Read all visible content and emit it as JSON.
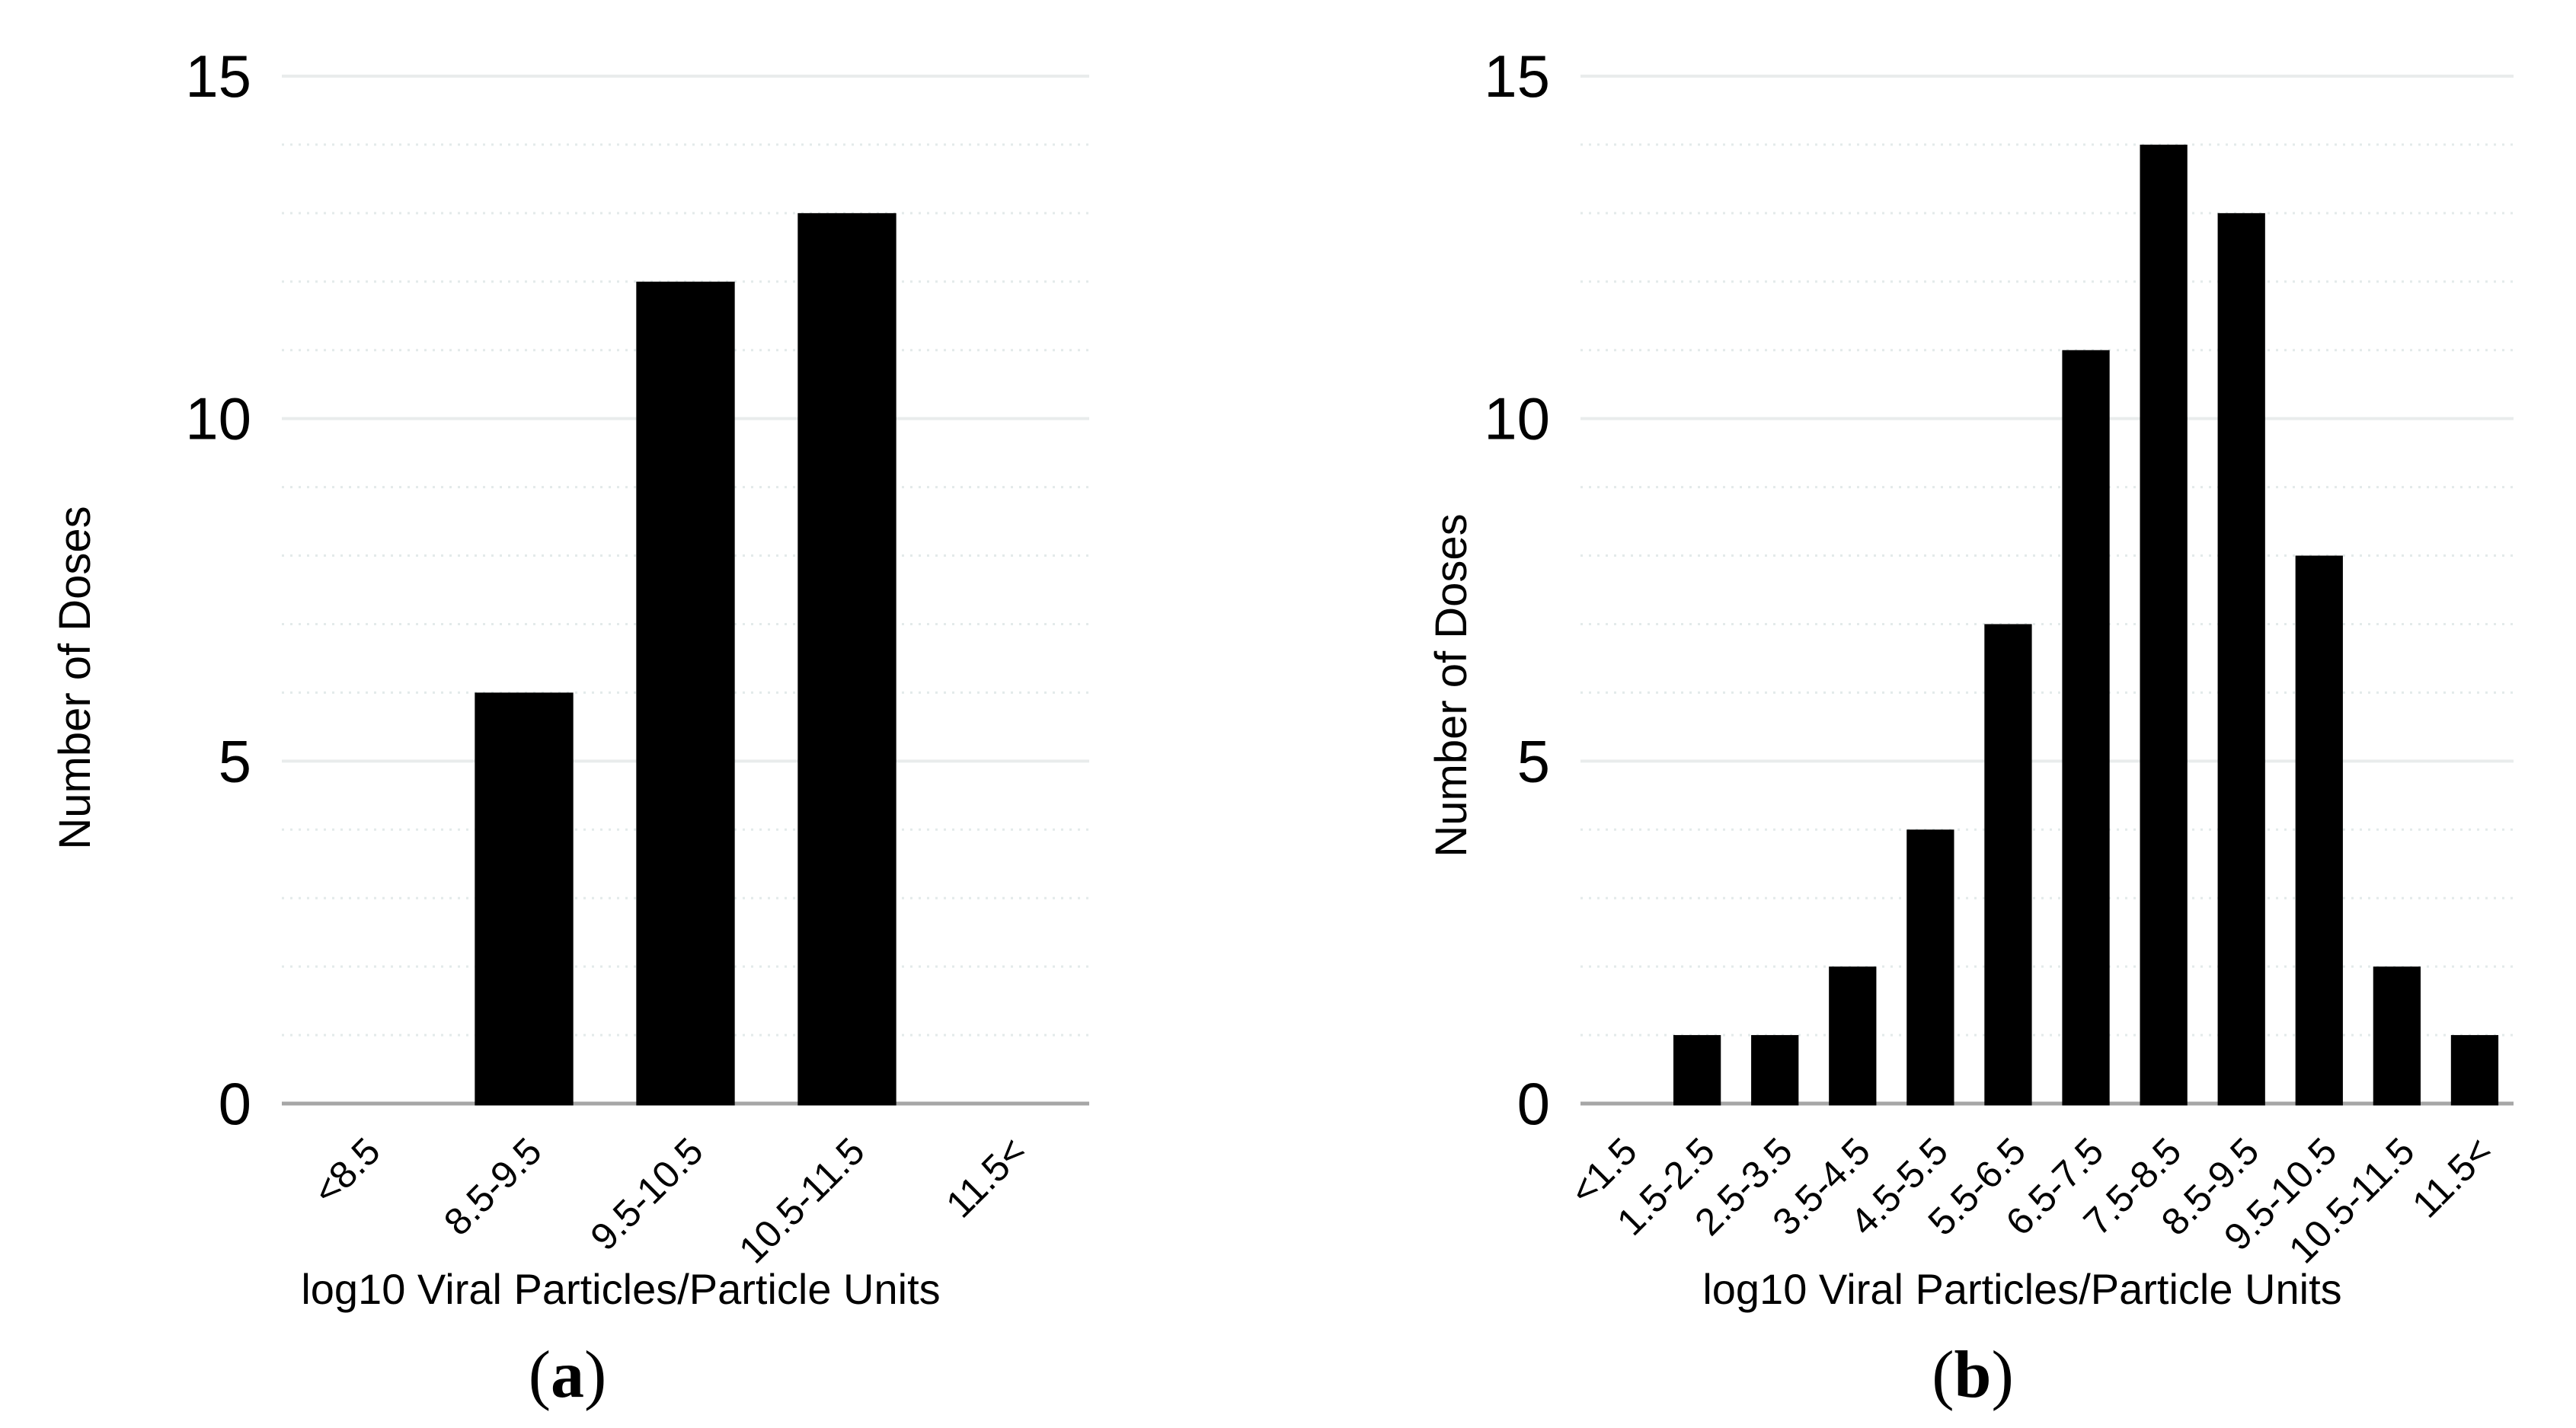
{
  "figure": {
    "description_visible_panels": [
      "(a)",
      "(b)"
    ]
  },
  "chart_data": [
    {
      "type": "bar",
      "panel": "a",
      "title": "",
      "categories": [
        "<8.5",
        "8.5-9.5",
        "9.5-10.5",
        "10.5-11.5",
        "11.5<"
      ],
      "values": [
        0,
        6,
        12,
        13,
        0
      ],
      "xlabel": "log10 Viral Particles/Particle Units",
      "ylabel": "Number of Doses",
      "yticks": [
        0,
        5,
        10,
        15
      ],
      "ylim": [
        0,
        15
      ],
      "grid": {
        "horizontal": true,
        "minor_every": 1,
        "major_every": 5,
        "legend": "none"
      },
      "bar_color": "#000000",
      "major_gridline_color": "#e9ecec",
      "minor_gridline_color": "#e3eaea",
      "axis_line_color": "#a6a6a6",
      "caption_open": "(",
      "caption_letter": "a",
      "caption_close": ")"
    },
    {
      "type": "bar",
      "panel": "b",
      "title": "",
      "categories": [
        "<1.5",
        "1.5-2.5",
        "2.5-3.5",
        "3.5-4.5",
        "4.5-5.5",
        "5.5-6.5",
        "6.5-7.5",
        "7.5-8.5",
        "8.5-9.5",
        "9.5-10.5",
        "10.5-11.5",
        "11.5<"
      ],
      "values": [
        0,
        1,
        1,
        2,
        4,
        7,
        11,
        14,
        13,
        8,
        2,
        1
      ],
      "xlabel": "log10 Viral Particles/Particle Units",
      "ylabel": "Number of Doses",
      "yticks": [
        0,
        5,
        10,
        15
      ],
      "ylim": [
        0,
        15
      ],
      "grid": {
        "horizontal": true,
        "minor_every": 1,
        "major_every": 5,
        "legend": "none"
      },
      "bar_color": "#000000",
      "major_gridline_color": "#e9ecec",
      "minor_gridline_color": "#e3eaea",
      "axis_line_color": "#a6a6a6",
      "caption_open": "(",
      "caption_letter": "b",
      "caption_close": ")"
    }
  ]
}
